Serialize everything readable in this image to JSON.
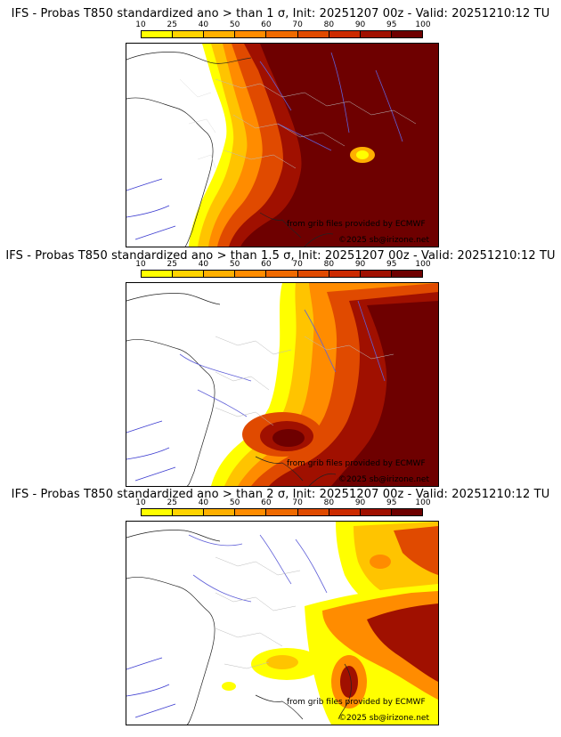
{
  "colorbar": {
    "ticks": [
      "10",
      "25",
      "40",
      "50",
      "60",
      "70",
      "80",
      "90",
      "95",
      "100"
    ],
    "colors": [
      "#ffff00",
      "#ffd400",
      "#ffb000",
      "#ff8c00",
      "#f06a00",
      "#e04a00",
      "#cc2a00",
      "#a01000",
      "#6e0000"
    ]
  },
  "panels": [
    {
      "title": "IFS - Probas T850  standardized ano > than 1 σ, Init: 20251207 00z - Valid: 20251210:12 TU"
    },
    {
      "title": "IFS - Probas T850  standardized ano > than 1.5 σ, Init: 20251207 00z - Valid: 20251210:12 TU"
    },
    {
      "title": "IFS - Probas T850  standardized ano > than 2 σ, Init: 20251207 00z - Valid: 20251210:12 TU"
    }
  ],
  "credits": {
    "source": "from grib files provided by ECMWF",
    "copyright": "©2025 sb@irizone.net"
  }
}
